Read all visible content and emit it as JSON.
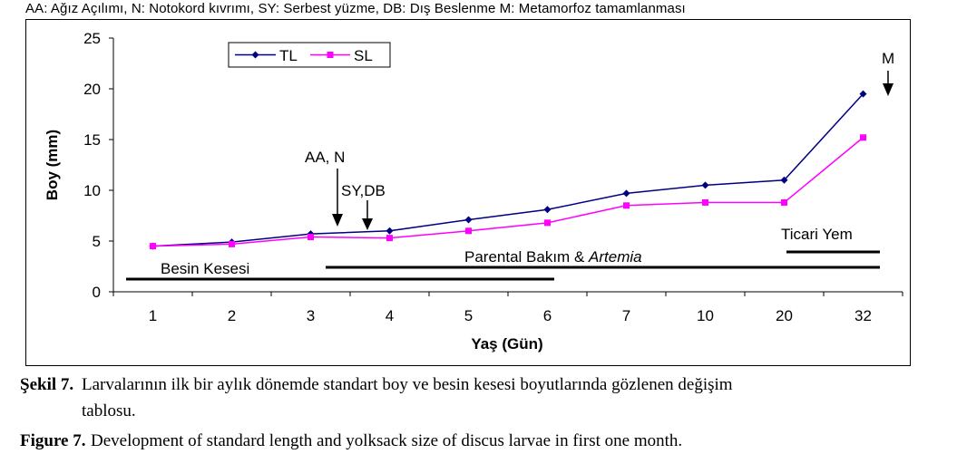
{
  "header_note": "AA: Ağız Açılımı, N: Notokord kıvrımı, SY: Serbest yüzme, DB: Dış Beslenme M: Metamorfoz tamamlanması",
  "chart_data": {
    "type": "line",
    "xlabel": "Yaş (Gün)",
    "ylabel": "Boy (mm)",
    "categories": [
      "1",
      "2",
      "3",
      "4",
      "5",
      "6",
      "7",
      "10",
      "20",
      "32"
    ],
    "ylim": [
      0,
      25
    ],
    "yticks": [
      "0",
      "5",
      "10",
      "15",
      "20",
      "25"
    ],
    "grid": false,
    "legend_position": "top-left",
    "series": [
      {
        "name": "TL",
        "color": "#000080",
        "marker": "diamond",
        "values": [
          4.5,
          4.9,
          5.7,
          6.0,
          7.1,
          8.1,
          9.7,
          10.5,
          11.0,
          19.5
        ]
      },
      {
        "name": "SL",
        "color": "#ff00ff",
        "marker": "square",
        "values": [
          4.5,
          4.7,
          5.4,
          5.3,
          6.0,
          6.8,
          8.5,
          8.8,
          8.8,
          15.2
        ]
      }
    ],
    "annotations": [
      {
        "id": "aa-n",
        "text": "AA, N"
      },
      {
        "id": "sy-db",
        "text": "SY,DB"
      },
      {
        "id": "m",
        "text": "M"
      }
    ],
    "period_bars": [
      {
        "id": "besin-kesesi",
        "label": "Besin Kesesi",
        "label_italic": ""
      },
      {
        "id": "parental",
        "label": "Parental Bakım & ",
        "label_italic": "Artemia"
      },
      {
        "id": "ticari",
        "label": "Ticari Yem",
        "label_italic": ""
      }
    ]
  },
  "caption": {
    "tr_label": "Şekil 7.",
    "tr_text_line1": "Larvalarının ilk bir aylık dönemde standart boy ve besin kesesi boyutlarında gözlenen değişim",
    "tr_text_line2": "tablosu.",
    "en_label": "Figure 7.",
    "en_text": "Development of standard length and yolksack size of discus larvae in first one month."
  }
}
